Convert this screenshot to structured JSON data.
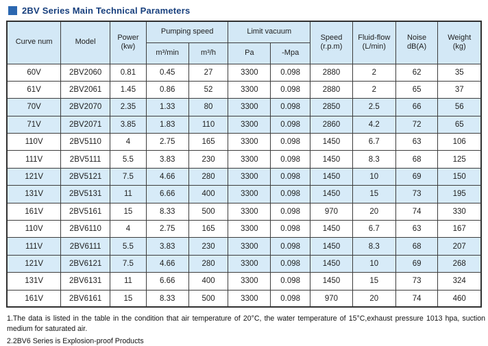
{
  "title": "2BV Series Main Technical Parameters",
  "colors": {
    "title_text": "#173f7d",
    "title_bullet": "#2b67b0",
    "header_bg": "#d3e8f6",
    "stripe_bg": "#d7ebf8",
    "border": "#3c3c3c"
  },
  "table": {
    "headers": {
      "curve_num": "Curve num",
      "model": "Model",
      "power_l1": "Power",
      "power_l2": "(kw)",
      "pumping_speed": "Pumping speed",
      "m3min": "m³/min",
      "m3h": "m³/h",
      "limit_vacuum": "Limit vacuum",
      "pa": "Pa",
      "mpa": "-Mpa",
      "speed_l1": "Speed",
      "speed_l2": "(r.p.m)",
      "fluid_l1": "Fluid-flow",
      "fluid_l2": "(L/min)",
      "noise_l1": "Noise",
      "noise_l2": "dB(A)",
      "weight_l1": "Weight",
      "weight_l2": "(kg)"
    },
    "col_keys": [
      "curve",
      "model",
      "power",
      "m3min",
      "m3h",
      "pa",
      "mpa",
      "speed",
      "fluid",
      "noise",
      "weight"
    ],
    "rows": [
      {
        "curve": "60V",
        "model": "2BV2060",
        "power": "0.81",
        "m3min": "0.45",
        "m3h": "27",
        "pa": "3300",
        "mpa": "0.098",
        "speed": "2880",
        "fluid": "2",
        "noise": "62",
        "weight": "35",
        "striped": false
      },
      {
        "curve": "61V",
        "model": "2BV2061",
        "power": "1.45",
        "m3min": "0.86",
        "m3h": "52",
        "pa": "3300",
        "mpa": "0.098",
        "speed": "2880",
        "fluid": "2",
        "noise": "65",
        "weight": "37",
        "striped": false
      },
      {
        "curve": "70V",
        "model": "2BV2070",
        "power": "2.35",
        "m3min": "1.33",
        "m3h": "80",
        "pa": "3300",
        "mpa": "0.098",
        "speed": "2850",
        "fluid": "2.5",
        "noise": "66",
        "weight": "56",
        "striped": true
      },
      {
        "curve": "71V",
        "model": "2BV2071",
        "power": "3.85",
        "m3min": "1.83",
        "m3h": "110",
        "pa": "3300",
        "mpa": "0.098",
        "speed": "2860",
        "fluid": "4.2",
        "noise": "72",
        "weight": "65",
        "striped": true
      },
      {
        "curve": "110V",
        "model": "2BV5110",
        "power": "4",
        "m3min": "2.75",
        "m3h": "165",
        "pa": "3300",
        "mpa": "0.098",
        "speed": "1450",
        "fluid": "6.7",
        "noise": "63",
        "weight": "106",
        "striped": false
      },
      {
        "curve": "111V",
        "model": "2BV5111",
        "power": "5.5",
        "m3min": "3.83",
        "m3h": "230",
        "pa": "3300",
        "mpa": "0.098",
        "speed": "1450",
        "fluid": "8.3",
        "noise": "68",
        "weight": "125",
        "striped": false
      },
      {
        "curve": "121V",
        "model": "2BV5121",
        "power": "7.5",
        "m3min": "4.66",
        "m3h": "280",
        "pa": "3300",
        "mpa": "0.098",
        "speed": "1450",
        "fluid": "10",
        "noise": "69",
        "weight": "150",
        "striped": true
      },
      {
        "curve": "131V",
        "model": "2BV5131",
        "power": "11",
        "m3min": "6.66",
        "m3h": "400",
        "pa": "3300",
        "mpa": "0.098",
        "speed": "1450",
        "fluid": "15",
        "noise": "73",
        "weight": "195",
        "striped": true
      },
      {
        "curve": "161V",
        "model": "2BV5161",
        "power": "15",
        "m3min": "8.33",
        "m3h": "500",
        "pa": "3300",
        "mpa": "0.098",
        "speed": "970",
        "fluid": "20",
        "noise": "74",
        "weight": "330",
        "striped": false
      },
      {
        "curve": "110V",
        "model": "2BV6110",
        "power": "4",
        "m3min": "2.75",
        "m3h": "165",
        "pa": "3300",
        "mpa": "0.098",
        "speed": "1450",
        "fluid": "6.7",
        "noise": "63",
        "weight": "167",
        "striped": false
      },
      {
        "curve": "111V",
        "model": "2BV6111",
        "power": "5.5",
        "m3min": "3.83",
        "m3h": "230",
        "pa": "3300",
        "mpa": "0.098",
        "speed": "1450",
        "fluid": "8.3",
        "noise": "68",
        "weight": "207",
        "striped": true
      },
      {
        "curve": "121V",
        "model": "2BV6121",
        "power": "7.5",
        "m3min": "4.66",
        "m3h": "280",
        "pa": "3300",
        "mpa": "0.098",
        "speed": "1450",
        "fluid": "10",
        "noise": "69",
        "weight": "268",
        "striped": true
      },
      {
        "curve": "131V",
        "model": "2BV6131",
        "power": "11",
        "m3min": "6.66",
        "m3h": "400",
        "pa": "3300",
        "mpa": "0.098",
        "speed": "1450",
        "fluid": "15",
        "noise": "73",
        "weight": "324",
        "striped": false
      },
      {
        "curve": "161V",
        "model": "2BV6161",
        "power": "15",
        "m3min": "8.33",
        "m3h": "500",
        "pa": "3300",
        "mpa": "0.098",
        "speed": "970",
        "fluid": "20",
        "noise": "74",
        "weight": "460",
        "striped": false
      }
    ]
  },
  "notes": [
    "1.The data is listed in the table in the condition that air temperature of 20°C, the water temperature of 15°C,exhaust pressure 1013 hpa, suction medium for saturated air.",
    "2.2BV6 Series is Explosion-proof Products"
  ]
}
